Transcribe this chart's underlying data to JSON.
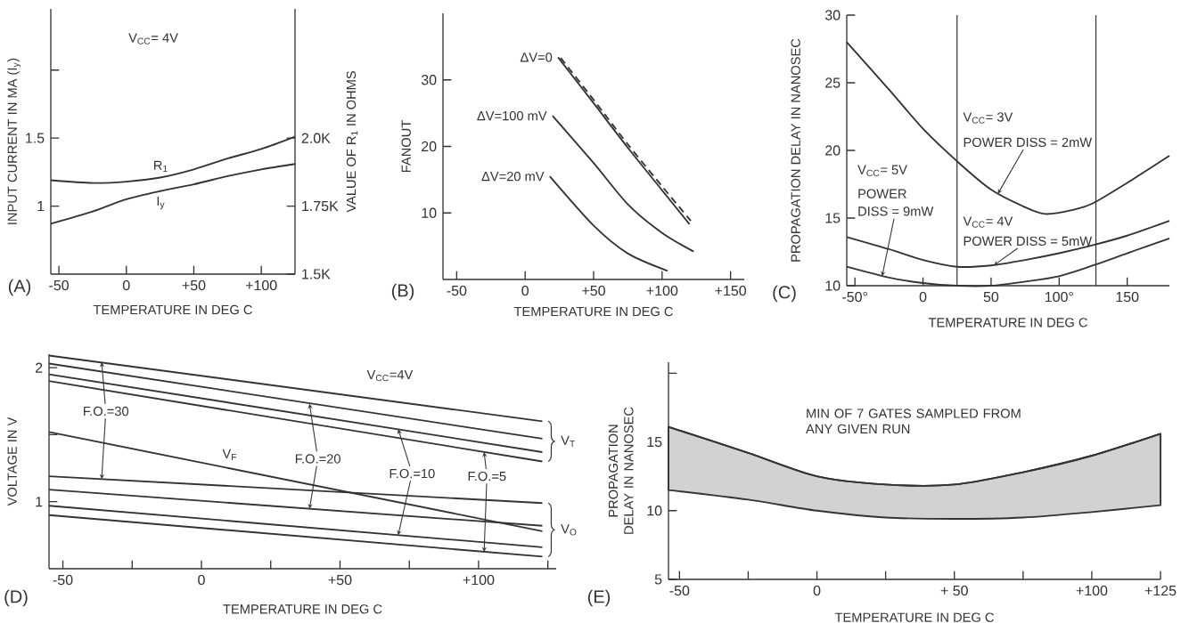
{
  "chart_data": [
    {
      "type": "line",
      "xlabel": "TEMPERATURE IN DEG C",
      "ylabel": "INPUT CURRENT IN MA (I$_{y}$)",
      "y2label": "VALUE OF R$_{1}$ IN OHMS",
      "xlim": [
        -56,
        125
      ],
      "xticks": [
        -50,
        0,
        {
          "value": 50,
          "label": "+50"
        },
        {
          "value": 100,
          "label": "+100"
        }
      ],
      "ylim": [
        0.5,
        2.45
      ],
      "yticks": [
        1,
        1.5,
        {
          "value": 2,
          "label": null
        }
      ],
      "y2lim": [
        1.5,
        2.475
      ],
      "y2ticks": [
        {
          "value": 1.5,
          "label": "1.5K"
        },
        {
          "value": 1.75,
          "label": "1.75K"
        },
        {
          "value": 2.0,
          "label": "2.0K"
        }
      ],
      "x": [
        -56,
        -25,
        0,
        25,
        50,
        75,
        100,
        125
      ],
      "series": [
        {
          "name": "R$_{1}$",
          "color": "#333333",
          "axis": "y2",
          "values": [
            1.845,
            1.835,
            1.84,
            1.855,
            1.885,
            1.925,
            1.96,
            2.005
          ]
        },
        {
          "name": "I$_{y}$",
          "color": "#333333",
          "values": [
            0.87,
            0.96,
            1.05,
            1.11,
            1.16,
            1.22,
            1.27,
            1.31
          ]
        }
      ],
      "annotations": [
        "(A)",
        "V$_{CC}$= 4V"
      ]
    },
    {
      "type": "line",
      "xlabel": "TEMPERATURE IN DEG C",
      "ylabel": "FANOUT",
      "xlim": [
        -60,
        160
      ],
      "xticks": [
        -50,
        0,
        {
          "value": 50,
          "label": "+50"
        },
        {
          "value": 100,
          "label": "+100"
        },
        {
          "value": 150,
          "label": "+150"
        }
      ],
      "ylim": [
        0,
        40
      ],
      "yticks": [
        10,
        20,
        30
      ],
      "series": [
        {
          "name": "ΔV=0",
          "color": "#333333",
          "x": [
            24,
            50,
            75,
            100,
            120
          ],
          "values": [
            33.4,
            26.5,
            19.8,
            13.4,
            8.3
          ]
        },
        {
          "color": "#333333",
          "line_style": "dashed",
          "x": [
            26,
            50,
            75,
            100,
            121
          ],
          "values": [
            33.3,
            27.0,
            20.3,
            14.0,
            8.8
          ]
        },
        {
          "name": "ΔV=100 mV",
          "color": "#333333",
          "x": [
            20,
            50,
            75,
            100,
            123
          ],
          "values": [
            24.6,
            17.5,
            11.3,
            7.0,
            4.2
          ]
        },
        {
          "name": "ΔV=20 mV",
          "color": "#333333",
          "x": [
            18,
            50,
            75,
            104
          ],
          "values": [
            15.5,
            8.1,
            3.9,
            1.3
          ]
        }
      ],
      "annotations": [
        "(B)"
      ]
    },
    {
      "type": "line",
      "xlabel": "TEMPERATURE IN DEG C",
      "ylabel": "PROPAGATION DELAY IN NANOSEC",
      "xlim": [
        -56,
        181
      ],
      "xticks": [
        {
          "value": -50,
          "label": "-50°"
        },
        0,
        50,
        {
          "value": 100,
          "label": "100°"
        },
        150
      ],
      "ylim": [
        10,
        30
      ],
      "yticks": [
        10,
        15,
        20,
        25,
        30
      ],
      "x": [
        -56,
        -25,
        0,
        25,
        50,
        75,
        100,
        125,
        150,
        181
      ],
      "series": [
        {
          "color": "#333333",
          "x": [
            -56,
            -25,
            0,
            25,
            50,
            75,
            90,
            110,
            125,
            150,
            181
          ],
          "values": [
            28.0,
            24.5,
            21.6,
            19.2,
            17.1,
            15.8,
            15.3,
            15.6,
            16.1,
            17.6,
            19.6
          ]
        },
        {
          "color": "#333333",
          "values": [
            13.6,
            12.7,
            11.9,
            11.4,
            11.5,
            11.9,
            12.4,
            13.0,
            13.7,
            14.8
          ]
        },
        {
          "color": "#333333",
          "values": [
            11.4,
            10.6,
            10.2,
            10.0,
            10.0,
            10.3,
            10.7,
            11.5,
            12.4,
            13.5
          ]
        }
      ],
      "ref_lines": [
        {
          "axis": "x",
          "value": 25
        },
        {
          "axis": "x",
          "value": 127
        }
      ],
      "annotations": [
        "(C)",
        "V$_{CC}$= 3V",
        {
          "text": "POWER DISS = 2mW",
          "x": 55,
          "y": 16.8
        },
        "V$_{CC}$= 4V",
        {
          "text": "POWER DISS = 5mW",
          "x": 52,
          "y": 11.5
        },
        "V$_{CC}$= 5V",
        "POWER",
        {
          "text": "DISS = 9mW",
          "x": -30,
          "y": 10.7
        }
      ]
    },
    {
      "type": "line",
      "xlabel": "TEMPERATURE IN DEG C",
      "ylabel": "VOLTAGE IN V",
      "xlim": [
        -55,
        128
      ],
      "xticks": [
        -50,
        {
          "value": -25,
          "label": null
        },
        0,
        {
          "value": 25,
          "label": null
        },
        {
          "value": 50,
          "label": "+50"
        },
        {
          "value": 75,
          "label": null
        },
        {
          "value": 100,
          "label": "+100"
        },
        {
          "value": 125,
          "label": null
        }
      ],
      "ylim": [
        0.5,
        2.1
      ],
      "yticks": [
        1,
        {
          "value": 1.5,
          "label": null
        },
        2
      ],
      "x": [
        -55,
        123
      ],
      "series": [
        {
          "color": "#333333",
          "values": [
            2.09,
            1.6
          ]
        },
        {
          "color": "#333333",
          "values": [
            2.03,
            1.47
          ]
        },
        {
          "color": "#333333",
          "values": [
            1.95,
            1.37
          ]
        },
        {
          "color": "#333333",
          "values": [
            1.9,
            1.3
          ]
        },
        {
          "name": "V$_{F}$",
          "color": "#333333",
          "values": [
            1.52,
            0.78
          ]
        },
        {
          "color": "#333333",
          "values": [
            1.19,
            0.99
          ]
        },
        {
          "color": "#333333",
          "values": [
            1.09,
            0.82
          ]
        },
        {
          "color": "#333333",
          "values": [
            0.97,
            0.66
          ]
        },
        {
          "color": "#333333",
          "values": [
            0.9,
            0.59
          ]
        }
      ],
      "annotations": [
        "(D)",
        "V$_{CC}$=4V",
        "V$_{T}$",
        "V$_{O}$",
        {
          "text": "F.O.=30",
          "x": -36,
          "y": 2.04
        },
        {
          "text": "F.O.=20",
          "x": 39,
          "y": 1.73
        },
        {
          "text": "F.O.=10",
          "x": 71,
          "y": 1.54
        },
        {
          "text": "F.O.=5",
          "x": 102,
          "y": 1.37
        }
      ]
    },
    {
      "type": "line",
      "xlabel": "TEMPERATURE IN DEG C",
      "ylabel": "PROPAGATION DELAY IN NANOSEC",
      "xlim": [
        -54,
        125
      ],
      "xticks": [
        -50,
        {
          "value": -25,
          "label": null
        },
        0,
        {
          "value": 25,
          "label": null
        },
        {
          "value": 50,
          "label": "+ 50"
        },
        {
          "value": 75,
          "label": null
        },
        {
          "value": 100,
          "label": "+100"
        },
        {
          "value": 125,
          "label": "+125"
        }
      ],
      "ylim": [
        5,
        20.8
      ],
      "yticks": [
        5,
        10,
        15,
        {
          "value": 20,
          "label": null
        }
      ],
      "x": [
        -54,
        -25,
        0,
        25,
        50,
        75,
        100,
        125
      ],
      "series": [
        {
          "color": "#333333",
          "values": [
            16.1,
            14.2,
            12.5,
            11.9,
            11.9,
            12.8,
            14.0,
            15.6
          ],
          "upper": [
            16.1,
            14.2,
            12.5,
            11.9,
            11.9,
            12.8,
            14.0,
            15.6
          ],
          "lower": [
            11.5,
            10.8,
            10.0,
            9.5,
            9.4,
            9.5,
            9.9,
            10.4
          ]
        }
      ],
      "annotations": [
        "(E)",
        "MIN OF 7 GATES SAMPLED FROM ANY GIVEN RUN"
      ]
    }
  ]
}
